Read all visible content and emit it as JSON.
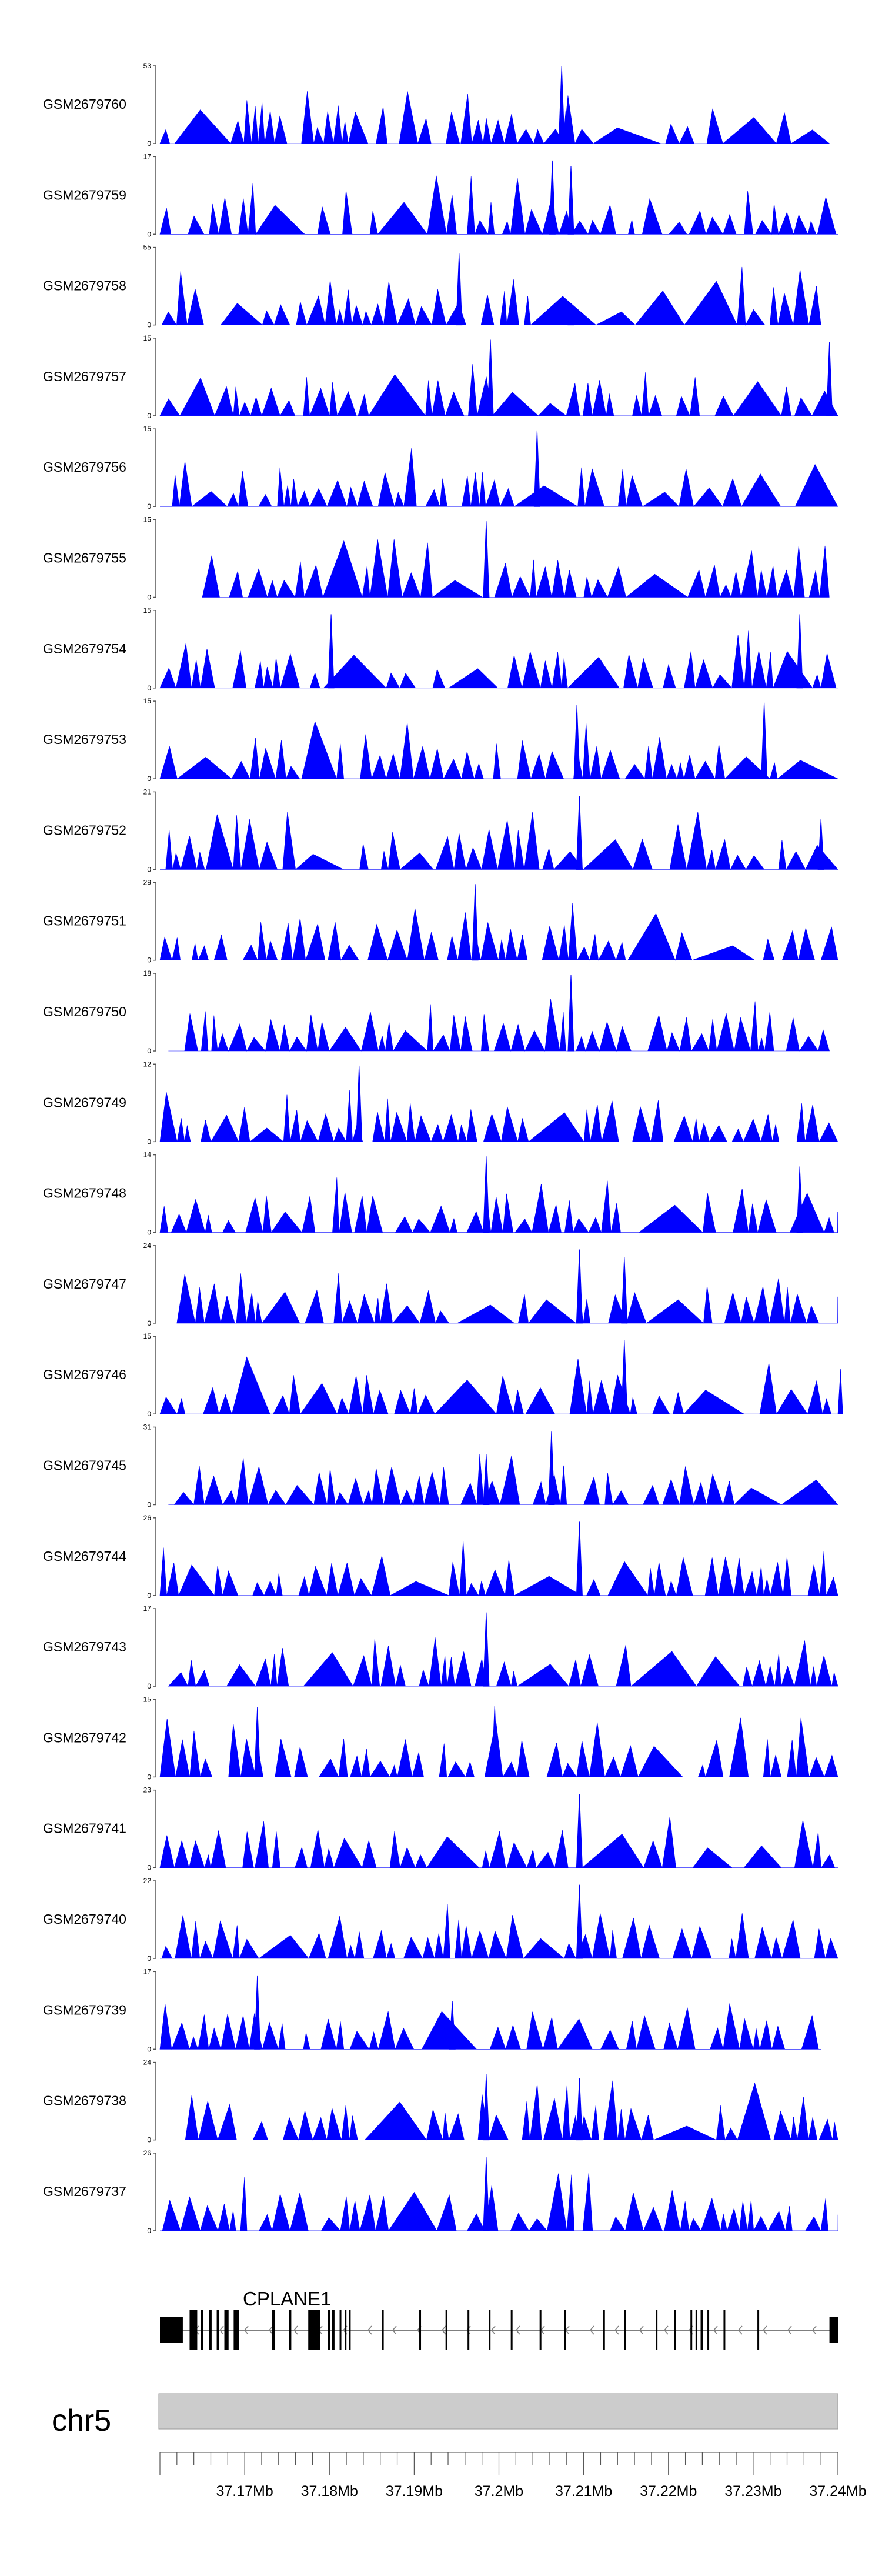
{
  "chart_data": {
    "type": "area",
    "title": "",
    "region": {
      "chromosome": "chr5",
      "gene": "CPLANE1",
      "strand": "-"
    },
    "x_range_mb": [
      37.16,
      37.24
    ],
    "x_ticks_mb": [
      37.17,
      37.18,
      37.19,
      37.2,
      37.21,
      37.22,
      37.23,
      37.24
    ],
    "x_tick_labels": [
      "37.17Mb",
      "37.18Mb",
      "37.19Mb",
      "37.2Mb",
      "37.21Mb",
      "37.22Mb",
      "37.23Mb",
      "37.24Mb"
    ],
    "colors": {
      "coverage": "#0000ff",
      "axis": "#555555",
      "exon": "#000000",
      "intron": "#7f7f7f",
      "ideogram": "#cccccc"
    },
    "series": [
      {
        "name": "GSM2679760",
        "ymax": 53,
        "ymin": 0,
        "start": 37.16,
        "end": 37.239,
        "seed": 11,
        "peaks": [
          [
            37.2074,
            1.0
          ],
          [
            37.2079,
            0.42
          ]
        ]
      },
      {
        "name": "GSM2679759",
        "ymax": 17,
        "ymin": 0,
        "start": 37.16,
        "end": 37.24,
        "seed": 23,
        "peaks": [
          [
            37.2063,
            0.95
          ],
          [
            37.2085,
            0.88
          ]
        ]
      },
      {
        "name": "GSM2679758",
        "ymax": 55,
        "ymin": 0,
        "start": 37.16,
        "end": 37.238,
        "seed": 37,
        "peaks": [
          [
            37.1953,
            0.92
          ],
          [
            37.2085,
            0.22
          ]
        ]
      },
      {
        "name": "GSM2679757",
        "ymax": 15,
        "ymin": 0,
        "start": 37.16,
        "end": 37.24,
        "seed": 41,
        "peaks": [
          [
            37.199,
            0.98
          ],
          [
            37.239,
            0.95
          ]
        ]
      },
      {
        "name": "GSM2679756",
        "ymax": 15,
        "ymin": 0,
        "start": 37.16,
        "end": 37.24,
        "seed": 53,
        "peaks": [
          [
            37.2045,
            0.98
          ]
        ]
      },
      {
        "name": "GSM2679755",
        "ymax": 15,
        "ymin": 0,
        "start": 37.165,
        "end": 37.239,
        "seed": 61,
        "peaks": [
          [
            37.1985,
            0.98
          ]
        ]
      },
      {
        "name": "GSM2679754",
        "ymax": 15,
        "ymin": 0,
        "start": 37.16,
        "end": 37.24,
        "seed": 71,
        "peaks": [
          [
            37.1802,
            0.95
          ],
          [
            37.2355,
            0.95
          ]
        ]
      },
      {
        "name": "GSM2679753",
        "ymax": 15,
        "ymin": 0,
        "start": 37.16,
        "end": 37.24,
        "seed": 83,
        "peaks": [
          [
            37.2092,
            0.95
          ],
          [
            37.2313,
            0.98
          ]
        ]
      },
      {
        "name": "GSM2679752",
        "ymax": 21,
        "ymin": 0,
        "start": 37.16,
        "end": 37.24,
        "seed": 97,
        "peaks": [
          [
            37.2095,
            0.95
          ],
          [
            37.238,
            0.65
          ]
        ]
      },
      {
        "name": "GSM2679751",
        "ymax": 29,
        "ymin": 0,
        "start": 37.16,
        "end": 37.24,
        "seed": 101,
        "peaks": [
          [
            37.1972,
            0.98
          ]
        ]
      },
      {
        "name": "GSM2679750",
        "ymax": 18,
        "ymin": 0,
        "start": 37.161,
        "end": 37.239,
        "seed": 113,
        "peaks": [
          [
            37.2085,
            0.98
          ]
        ]
      },
      {
        "name": "GSM2679749",
        "ymax": 12,
        "ymin": 0,
        "start": 37.16,
        "end": 37.24,
        "seed": 127,
        "peaks": [
          [
            37.1835,
            0.98
          ]
        ]
      },
      {
        "name": "GSM2679748",
        "ymax": 14,
        "ymin": 0,
        "start": 37.16,
        "end": 37.24,
        "seed": 131,
        "peaks": [
          [
            37.1985,
            0.98
          ],
          [
            37.2355,
            0.85
          ]
        ]
      },
      {
        "name": "GSM2679747",
        "ymax": 24,
        "ymin": 0,
        "start": 37.162,
        "end": 37.24,
        "seed": 139,
        "peaks": [
          [
            37.2095,
            0.95
          ],
          [
            37.2148,
            0.85
          ]
        ]
      },
      {
        "name": "GSM2679746",
        "ymax": 15,
        "ymin": 0,
        "start": 37.16,
        "end": 37.24,
        "seed": 149,
        "peaks": [
          [
            37.2148,
            0.95
          ]
        ]
      },
      {
        "name": "GSM2679745",
        "ymax": 31,
        "ymin": 0,
        "start": 37.161,
        "end": 37.24,
        "seed": 151,
        "peaks": [
          [
            37.2062,
            0.95
          ],
          [
            37.1985,
            0.65
          ]
        ]
      },
      {
        "name": "GSM2679744",
        "ymax": 26,
        "ymin": 0,
        "start": 37.16,
        "end": 37.24,
        "seed": 163,
        "peaks": [
          [
            37.2095,
            0.95
          ]
        ]
      },
      {
        "name": "GSM2679743",
        "ymax": 17,
        "ymin": 0,
        "start": 37.161,
        "end": 37.24,
        "seed": 173,
        "peaks": [
          [
            37.1985,
            0.95
          ]
        ]
      },
      {
        "name": "GSM2679742",
        "ymax": 15,
        "ymin": 0,
        "start": 37.16,
        "end": 37.24,
        "seed": 181,
        "peaks": [
          [
            37.1995,
            0.92
          ],
          [
            37.1715,
            0.9
          ]
        ]
      },
      {
        "name": "GSM2679741",
        "ymax": 23,
        "ymin": 0,
        "start": 37.16,
        "end": 37.24,
        "seed": 191,
        "peaks": [
          [
            37.2095,
            0.95
          ]
        ]
      },
      {
        "name": "GSM2679740",
        "ymax": 22,
        "ymin": 0,
        "start": 37.16,
        "end": 37.24,
        "seed": 199,
        "peaks": [
          [
            37.2095,
            0.95
          ]
        ]
      },
      {
        "name": "GSM2679739",
        "ymax": 17,
        "ymin": 0,
        "start": 37.16,
        "end": 37.238,
        "seed": 211,
        "peaks": [
          [
            37.1715,
            0.95
          ],
          [
            37.1945,
            0.62
          ]
        ]
      },
      {
        "name": "GSM2679738",
        "ymax": 24,
        "ymin": 0,
        "start": 37.163,
        "end": 37.24,
        "seed": 223,
        "peaks": [
          [
            37.1985,
            0.85
          ],
          [
            37.2095,
            0.8
          ]
        ]
      },
      {
        "name": "GSM2679737",
        "ymax": 26,
        "ymin": 0,
        "start": 37.16,
        "end": 37.24,
        "seed": 227,
        "peaks": [
          [
            37.1985,
            0.95
          ]
        ]
      }
    ],
    "exons_mb": [
      [
        37.16,
        37.1627
      ],
      [
        37.1635,
        37.1644
      ],
      [
        37.1648,
        37.1651
      ],
      [
        37.1658,
        37.1661
      ],
      [
        37.1667,
        37.167
      ],
      [
        37.1676,
        37.1681
      ],
      [
        37.1687,
        37.1693
      ],
      [
        37.1732,
        37.1736
      ],
      [
        37.1752,
        37.1755
      ],
      [
        37.1775,
        37.1789
      ],
      [
        37.1798,
        37.1801
      ],
      [
        37.1803,
        37.1806
      ],
      [
        37.1812,
        37.1814
      ],
      [
        37.1818,
        37.182
      ],
      [
        37.1823,
        37.1825
      ],
      [
        37.1862,
        37.1864
      ],
      [
        37.1906,
        37.1908
      ],
      [
        37.1937,
        37.1939
      ],
      [
        37.1963,
        37.1965
      ],
      [
        37.1988,
        37.199
      ],
      [
        37.2014,
        37.2016
      ],
      [
        37.2048,
        37.205
      ],
      [
        37.2077,
        37.2079
      ],
      [
        37.2123,
        37.2125
      ],
      [
        37.2148,
        37.215
      ],
      [
        37.2185,
        37.2187
      ],
      [
        37.2207,
        37.2209
      ],
      [
        37.2226,
        37.2228
      ],
      [
        37.2232,
        37.2234
      ],
      [
        37.2238,
        37.2241
      ],
      [
        37.2246,
        37.2248
      ],
      [
        37.2265,
        37.2267
      ],
      [
        37.2305,
        37.2307
      ],
      [
        37.239,
        37.24
      ]
    ],
    "xlabel": "",
    "ylabel": ""
  }
}
